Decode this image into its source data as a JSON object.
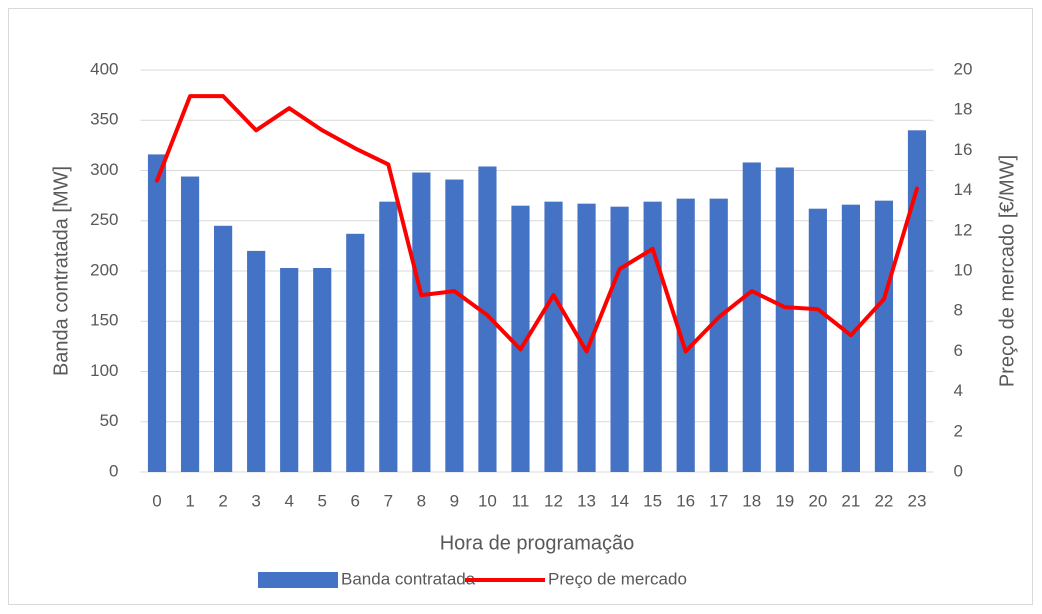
{
  "chart_data": {
    "type": "bar",
    "categories": [
      "0",
      "1",
      "2",
      "3",
      "4",
      "5",
      "6",
      "7",
      "8",
      "9",
      "10",
      "11",
      "12",
      "13",
      "14",
      "15",
      "16",
      "17",
      "18",
      "19",
      "20",
      "21",
      "22",
      "23"
    ],
    "series": [
      {
        "name": "Banda contratada",
        "type": "bar",
        "color": "#4472c4",
        "values": [
          316,
          294,
          245,
          220,
          203,
          203,
          237,
          269,
          298,
          291,
          304,
          265,
          269,
          267,
          264,
          269,
          272,
          272,
          308,
          303,
          262,
          266,
          270,
          340
        ]
      },
      {
        "name": "Preço de mercado",
        "type": "line",
        "axis": "y2",
        "color": "#ff0000",
        "values": [
          14.5,
          18.7,
          18.7,
          17.0,
          18.1,
          17.0,
          16.1,
          15.3,
          8.8,
          9.0,
          7.8,
          6.1,
          8.8,
          6.0,
          10.1,
          11.1,
          6.0,
          7.7,
          9.0,
          8.2,
          8.1,
          6.8,
          8.6,
          14.1
        ]
      }
    ],
    "ylabel": "Banda contratada [MW]",
    "y2label": "Preço de mercado [€/MW]",
    "xlabel": "Hora de programação",
    "ylim": [
      0,
      400
    ],
    "yticks": [
      0,
      50,
      100,
      150,
      200,
      250,
      300,
      350,
      400
    ],
    "y2lim": [
      0,
      20
    ],
    "y2ticks": [
      0,
      2,
      4,
      6,
      8,
      10,
      12,
      14,
      16,
      18,
      20
    ],
    "grid": true,
    "legend": "bottom"
  }
}
